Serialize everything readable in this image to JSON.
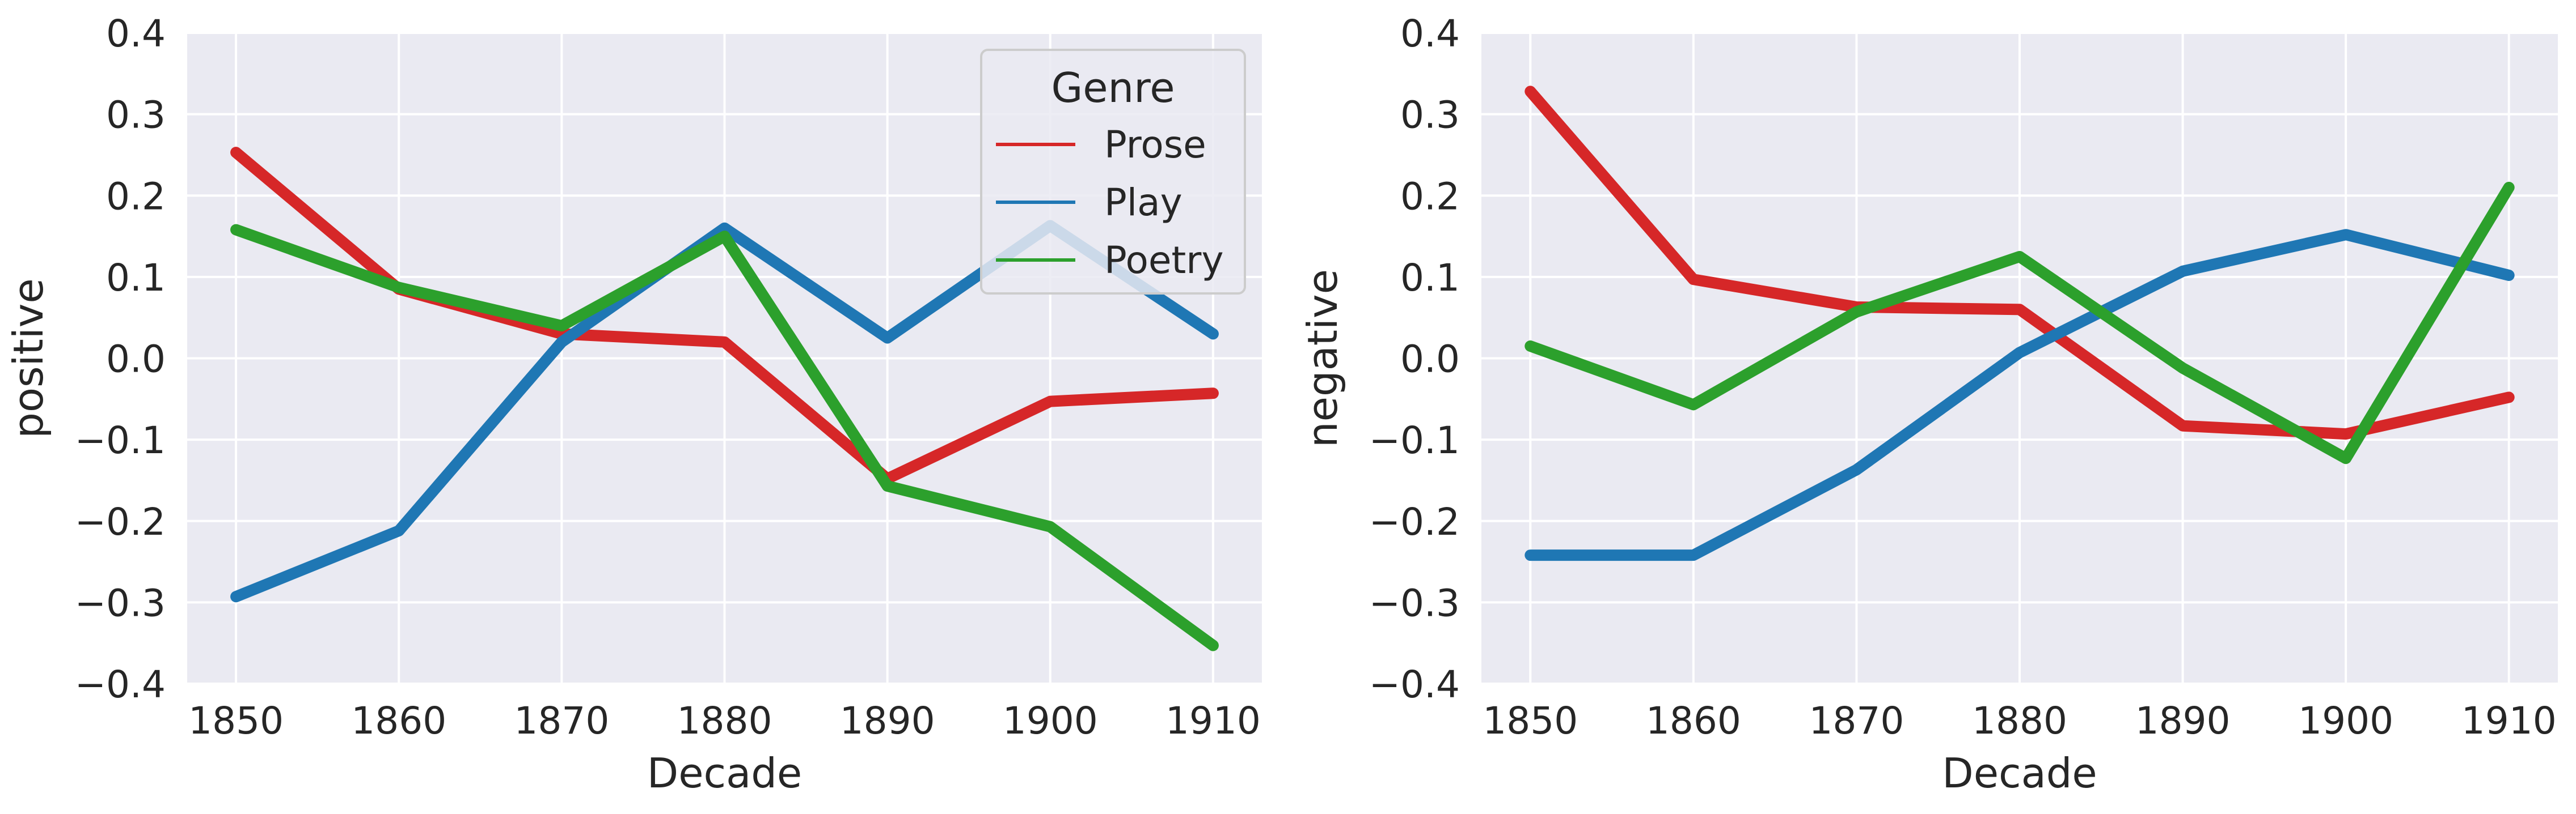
{
  "chart_data": [
    {
      "type": "line",
      "xlabel": "Decade",
      "ylabel": "positive",
      "x": [
        1850,
        1860,
        1870,
        1880,
        1890,
        1900,
        1910
      ],
      "xlim": [
        1847,
        1913
      ],
      "ylim": [
        -0.4,
        0.4
      ],
      "xticks": [
        "1850",
        "1860",
        "1870",
        "1880",
        "1890",
        "1900",
        "1910"
      ],
      "yticks": [
        "0.4",
        "0.3",
        "0.2",
        "0.1",
        "0.0",
        "−0.1",
        "−0.2",
        "−0.3",
        "−0.4"
      ],
      "grid": true,
      "legend": {
        "title": "Genre",
        "position": "top-right"
      },
      "series": [
        {
          "name": "Prose",
          "color": "#d62728",
          "values": [
            0.253,
            0.085,
            0.03,
            0.02,
            -0.148,
            -0.053,
            -0.043
          ]
        },
        {
          "name": "Play",
          "color": "#1f77b4",
          "values": [
            -0.293,
            -0.212,
            0.02,
            0.16,
            0.025,
            0.163,
            0.03
          ]
        },
        {
          "name": "Poetry",
          "color": "#2ca02c",
          "values": [
            0.158,
            0.087,
            0.04,
            0.15,
            -0.157,
            -0.207,
            -0.353
          ]
        }
      ]
    },
    {
      "type": "line",
      "xlabel": "Decade",
      "ylabel": "negative",
      "x": [
        1850,
        1860,
        1870,
        1880,
        1890,
        1900,
        1910
      ],
      "xlim": [
        1847,
        1913
      ],
      "ylim": [
        -0.4,
        0.4
      ],
      "xticks": [
        "1850",
        "1860",
        "1870",
        "1880",
        "1890",
        "1900",
        "1910"
      ],
      "yticks": [
        "0.4",
        "0.3",
        "0.2",
        "0.1",
        "0.0",
        "−0.1",
        "−0.2",
        "−0.3",
        "−0.4"
      ],
      "grid": true,
      "legend": null,
      "series": [
        {
          "name": "Prose",
          "color": "#d62728",
          "values": [
            0.328,
            0.097,
            0.063,
            0.06,
            -0.083,
            -0.093,
            -0.048
          ]
        },
        {
          "name": "Play",
          "color": "#1f77b4",
          "values": [
            -0.242,
            -0.242,
            -0.137,
            0.007,
            0.107,
            0.152,
            0.102
          ]
        },
        {
          "name": "Poetry",
          "color": "#2ca02c",
          "values": [
            0.015,
            -0.057,
            0.057,
            0.125,
            -0.012,
            -0.123,
            0.21
          ]
        }
      ]
    }
  ]
}
